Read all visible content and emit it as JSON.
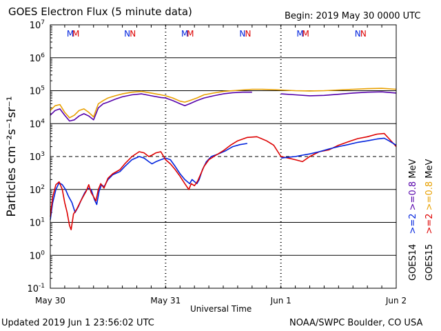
{
  "header": {
    "title": "GOES Electron Flux (5 minute data)",
    "begin": "Begin: 2019 May 30 0000 UTC"
  },
  "footer": {
    "updated": "Updated 2019 Jun  1 23:56:02 UTC",
    "source": "NOAA/SWPC Boulder, CO USA"
  },
  "colors": {
    "goes14_gt2": "#0022dd",
    "goes15_gt2": "#dd0000",
    "goes14_gt08": "#5500aa",
    "goes15_gt08": "#e8a000"
  },
  "chart_data": {
    "type": "line",
    "title": "GOES Electron Flux (5 minute data)",
    "xlabel": "Universal Time",
    "ylabel": "Particles cm⁻²s⁻¹sr⁻¹",
    "y_scale": "log",
    "ylim": [
      0.1,
      10000000
    ],
    "y_ticks": [
      {
        "exp": "-1",
        "value": 0.1
      },
      {
        "exp": "0",
        "value": 1
      },
      {
        "exp": "1",
        "value": 10
      },
      {
        "exp": "2",
        "value": 100
      },
      {
        "exp": "3",
        "value": 1000
      },
      {
        "exp": "4",
        "value": 10000
      },
      {
        "exp": "5",
        "value": 100000
      },
      {
        "exp": "6",
        "value": 1000000
      },
      {
        "exp": "7",
        "value": 10000000
      }
    ],
    "xlim": [
      "2019-05-30T00:00",
      "2019-06-02T00:00"
    ],
    "x_ticks": [
      "May 30",
      "May 31",
      "Jun 1",
      "Jun 2"
    ],
    "reference_line": {
      "value": 1000,
      "style": "dashed"
    },
    "markers": [
      {
        "label": "M",
        "x": "2019-05-30T04:10",
        "color": "#0022dd"
      },
      {
        "label": "M",
        "x": "2019-05-30T05:20",
        "color": "#dd0000"
      },
      {
        "label": "N",
        "x": "2019-05-30T16:00",
        "color": "#0022dd"
      },
      {
        "label": "N",
        "x": "2019-05-30T17:10",
        "color": "#dd0000"
      },
      {
        "label": "M",
        "x": "2019-05-31T04:00",
        "color": "#0022dd"
      },
      {
        "label": "M",
        "x": "2019-05-31T05:10",
        "color": "#dd0000"
      },
      {
        "label": "N",
        "x": "2019-05-31T16:00",
        "color": "#0022dd"
      },
      {
        "label": "N",
        "x": "2019-05-31T17:10",
        "color": "#dd0000"
      },
      {
        "label": "M",
        "x": "2019-06-01T04:00",
        "color": "#0022dd"
      },
      {
        "label": "M",
        "x": "2019-06-01T05:10",
        "color": "#dd0000"
      },
      {
        "label": "N",
        "x": "2019-06-01T16:00",
        "color": "#0022dd"
      },
      {
        "label": "N",
        "x": "2019-06-01T17:10",
        "color": "#dd0000"
      }
    ],
    "legend": {
      "group_labels": [
        {
          "text": "GOES14",
          "color": "#000000"
        },
        {
          "text": "GOES15",
          "color": "#000000"
        }
      ],
      "entries": [
        {
          "text": ">=2",
          "color": "#0022dd"
        },
        {
          "text": ">=2",
          "color": "#dd0000"
        },
        {
          "text": ">=0.8",
          "color": "#5500aa"
        },
        {
          "text": ">=0.8",
          "color": "#e8a000"
        },
        {
          "text": "MeV",
          "color": "#000000"
        },
        {
          "text": "MeV",
          "color": "#000000"
        }
      ]
    },
    "series": [
      {
        "color": "#0022dd",
        "points": [
          [
            "2019-05-30T00:00",
            12
          ],
          [
            "2019-05-30T00:30",
            40
          ],
          [
            "2019-05-30T01:10",
            100
          ],
          [
            "2019-05-30T01:50",
            160
          ],
          [
            "2019-05-30T02:30",
            140
          ],
          [
            "2019-05-30T03:10",
            100
          ],
          [
            "2019-05-30T03:50",
            60
          ],
          [
            "2019-05-30T04:30",
            40
          ],
          [
            "2019-05-30T05:10",
            20
          ],
          [
            "2019-05-30T05:50",
            30
          ],
          [
            "2019-05-30T06:30",
            50
          ],
          [
            "2019-05-30T07:10",
            80
          ],
          [
            "2019-05-30T07:50",
            110
          ],
          [
            "2019-05-30T08:30",
            100
          ],
          [
            "2019-05-30T09:10",
            50
          ],
          [
            "2019-05-30T09:40",
            35
          ],
          [
            "2019-05-30T10:10",
            90
          ],
          [
            "2019-05-30T10:40",
            140
          ],
          [
            "2019-05-30T11:10",
            120
          ],
          [
            "2019-05-30T12:00",
            200
          ],
          [
            "2019-05-30T13:00",
            280
          ],
          [
            "2019-05-30T14:30",
            350
          ],
          [
            "2019-05-30T15:30",
            500
          ],
          [
            "2019-05-30T17:00",
            800
          ],
          [
            "2019-05-30T18:30",
            1000
          ],
          [
            "2019-05-30T19:30",
            900
          ],
          [
            "2019-05-30T20:30",
            700
          ],
          [
            "2019-05-30T21:10",
            600
          ],
          [
            "2019-05-30T22:00",
            700
          ],
          [
            "2019-05-30T23:00",
            800
          ],
          [
            "2019-05-31T00:00",
            900
          ],
          [
            "2019-05-31T01:00",
            800
          ],
          [
            "2019-05-31T02:00",
            500
          ],
          [
            "2019-05-31T03:00",
            300
          ],
          [
            "2019-05-31T04:00",
            200
          ],
          [
            "2019-05-31T05:00",
            150
          ],
          [
            "2019-05-31T05:30",
            200
          ],
          [
            "2019-05-31T06:30",
            150
          ],
          [
            "2019-05-31T07:00",
            200
          ],
          [
            "2019-05-31T07:40",
            400
          ],
          [
            "2019-05-31T08:30",
            700
          ],
          [
            "2019-05-31T09:30",
            1000
          ],
          [
            "2019-05-31T11:00",
            1200
          ],
          [
            "2019-05-31T12:30",
            1500
          ],
          [
            "2019-05-31T14:00",
            2000
          ],
          [
            "2019-05-31T15:30",
            2300
          ],
          [
            "2019-05-31T17:00",
            2500
          ]
        ]
      },
      {
        "color": "#dd0000",
        "points": [
          [
            "2019-05-30T00:00",
            15
          ],
          [
            "2019-05-30T00:30",
            60
          ],
          [
            "2019-05-30T01:10",
            140
          ],
          [
            "2019-05-30T01:50",
            170
          ],
          [
            "2019-05-30T02:30",
            100
          ],
          [
            "2019-05-30T03:00",
            40
          ],
          [
            "2019-05-30T03:30",
            20
          ],
          [
            "2019-05-30T04:00",
            8
          ],
          [
            "2019-05-30T04:20",
            6
          ],
          [
            "2019-05-30T04:50",
            18
          ],
          [
            "2019-05-30T05:30",
            25
          ],
          [
            "2019-05-30T06:10",
            40
          ],
          [
            "2019-05-30T06:50",
            60
          ],
          [
            "2019-05-30T07:30",
            90
          ],
          [
            "2019-05-30T08:00",
            140
          ],
          [
            "2019-05-30T08:30",
            80
          ],
          [
            "2019-05-30T09:00",
            60
          ],
          [
            "2019-05-30T09:30",
            45
          ],
          [
            "2019-05-30T10:00",
            100
          ],
          [
            "2019-05-30T10:30",
            150
          ],
          [
            "2019-05-30T11:10",
            110
          ],
          [
            "2019-05-30T12:00",
            220
          ],
          [
            "2019-05-30T13:00",
            300
          ],
          [
            "2019-05-30T14:30",
            400
          ],
          [
            "2019-05-30T15:30",
            600
          ],
          [
            "2019-05-30T17:00",
            1000
          ],
          [
            "2019-05-30T18:30",
            1400
          ],
          [
            "2019-05-30T19:30",
            1300
          ],
          [
            "2019-05-30T20:30",
            1000
          ],
          [
            "2019-05-30T21:10",
            1100
          ],
          [
            "2019-05-30T22:00",
            1300
          ],
          [
            "2019-05-30T23:00",
            1400
          ],
          [
            "2019-05-31T00:00",
            800
          ],
          [
            "2019-05-31T01:00",
            600
          ],
          [
            "2019-05-31T02:00",
            400
          ],
          [
            "2019-05-31T03:00",
            250
          ],
          [
            "2019-05-31T04:00",
            150
          ],
          [
            "2019-05-31T04:50",
            100
          ],
          [
            "2019-05-31T05:20",
            150
          ],
          [
            "2019-05-31T06:00",
            130
          ],
          [
            "2019-05-31T06:40",
            180
          ],
          [
            "2019-05-31T07:20",
            300
          ],
          [
            "2019-05-31T08:00",
            500
          ],
          [
            "2019-05-31T09:00",
            800
          ],
          [
            "2019-05-31T10:30",
            1100
          ],
          [
            "2019-05-31T12:00",
            1500
          ],
          [
            "2019-05-31T13:30",
            2200
          ],
          [
            "2019-05-31T15:00",
            3000
          ],
          [
            "2019-05-31T17:00",
            3800
          ],
          [
            "2019-05-31T19:00",
            4000
          ],
          [
            "2019-05-31T21:00",
            3000
          ],
          [
            "2019-05-31T22:30",
            2200
          ],
          [
            "2019-06-01T00:00",
            1000
          ],
          [
            "2019-06-01T01:30",
            900
          ],
          [
            "2019-06-01T03:00",
            800
          ],
          [
            "2019-06-01T04:30",
            700
          ],
          [
            "2019-06-01T06:00",
            1000
          ],
          [
            "2019-06-01T08:00",
            1400
          ],
          [
            "2019-06-01T10:00",
            1600
          ],
          [
            "2019-06-01T12:00",
            2200
          ],
          [
            "2019-06-01T14:00",
            2800
          ],
          [
            "2019-06-01T16:00",
            3500
          ],
          [
            "2019-06-01T18:00",
            4000
          ],
          [
            "2019-06-01T20:00",
            4800
          ],
          [
            "2019-06-01T21:30",
            5000
          ],
          [
            "2019-06-01T22:30",
            3500
          ],
          [
            "2019-06-02T00:00",
            2000
          ]
        ]
      },
      {
        "color": "#0022dd",
        "points": [
          [
            "2019-06-01T00:00",
            900
          ],
          [
            "2019-06-01T01:30",
            950
          ],
          [
            "2019-06-01T03:00",
            1000
          ],
          [
            "2019-06-01T04:30",
            1100
          ],
          [
            "2019-06-01T06:00",
            1200
          ],
          [
            "2019-06-01T08:00",
            1400
          ],
          [
            "2019-06-01T10:00",
            1700
          ],
          [
            "2019-06-01T12:00",
            2000
          ],
          [
            "2019-06-01T14:00",
            2300
          ],
          [
            "2019-06-01T16:00",
            2700
          ],
          [
            "2019-06-01T18:00",
            3000
          ],
          [
            "2019-06-01T20:00",
            3400
          ],
          [
            "2019-06-01T21:30",
            3600
          ],
          [
            "2019-06-01T22:30",
            3000
          ],
          [
            "2019-06-02T00:00",
            2200
          ]
        ]
      },
      {
        "color": "#5500aa",
        "points": [
          [
            "2019-05-30T00:00",
            18000
          ],
          [
            "2019-05-30T01:00",
            25000
          ],
          [
            "2019-05-30T02:00",
            28000
          ],
          [
            "2019-05-30T03:00",
            18000
          ],
          [
            "2019-05-30T04:00",
            12000
          ],
          [
            "2019-05-30T05:00",
            13000
          ],
          [
            "2019-05-30T06:00",
            17000
          ],
          [
            "2019-05-30T07:00",
            20000
          ],
          [
            "2019-05-30T08:00",
            17000
          ],
          [
            "2019-05-30T09:00",
            13000
          ],
          [
            "2019-05-30T10:00",
            30000
          ],
          [
            "2019-05-30T11:00",
            40000
          ],
          [
            "2019-05-30T12:00",
            45000
          ],
          [
            "2019-05-30T13:30",
            55000
          ],
          [
            "2019-05-30T15:00",
            65000
          ],
          [
            "2019-05-30T17:00",
            75000
          ],
          [
            "2019-05-30T19:00",
            80000
          ],
          [
            "2019-05-30T21:00",
            70000
          ],
          [
            "2019-05-30T23:00",
            62000
          ],
          [
            "2019-05-31T00:00",
            60000
          ],
          [
            "2019-05-31T01:30",
            50000
          ],
          [
            "2019-05-31T03:00",
            40000
          ],
          [
            "2019-05-31T04:00",
            35000
          ],
          [
            "2019-05-31T05:00",
            40000
          ],
          [
            "2019-05-31T06:30",
            50000
          ],
          [
            "2019-05-31T08:00",
            60000
          ],
          [
            "2019-05-31T10:00",
            70000
          ],
          [
            "2019-05-31T12:00",
            80000
          ],
          [
            "2019-05-31T14:00",
            87000
          ],
          [
            "2019-05-31T16:00",
            90000
          ],
          [
            "2019-05-31T18:00",
            90000
          ]
        ]
      },
      {
        "color": "#e8a000",
        "points": [
          [
            "2019-05-30T00:00",
            25000
          ],
          [
            "2019-05-30T01:00",
            35000
          ],
          [
            "2019-05-30T02:00",
            38000
          ],
          [
            "2019-05-30T03:00",
            22000
          ],
          [
            "2019-05-30T04:00",
            15000
          ],
          [
            "2019-05-30T05:00",
            18000
          ],
          [
            "2019-05-30T06:00",
            25000
          ],
          [
            "2019-05-30T07:00",
            28000
          ],
          [
            "2019-05-30T08:00",
            22000
          ],
          [
            "2019-05-30T09:00",
            16000
          ],
          [
            "2019-05-30T10:00",
            40000
          ],
          [
            "2019-05-30T11:00",
            50000
          ],
          [
            "2019-05-30T12:00",
            60000
          ],
          [
            "2019-05-30T13:30",
            70000
          ],
          [
            "2019-05-30T15:00",
            80000
          ],
          [
            "2019-05-30T17:00",
            90000
          ],
          [
            "2019-05-30T19:00",
            95000
          ],
          [
            "2019-05-30T21:00",
            85000
          ],
          [
            "2019-05-30T23:00",
            75000
          ],
          [
            "2019-05-31T00:00",
            70000
          ],
          [
            "2019-05-31T01:30",
            60000
          ],
          [
            "2019-05-31T03:00",
            48000
          ],
          [
            "2019-05-31T04:00",
            45000
          ],
          [
            "2019-05-31T05:00",
            50000
          ],
          [
            "2019-05-31T06:30",
            60000
          ],
          [
            "2019-05-31T08:00",
            75000
          ],
          [
            "2019-05-31T10:00",
            85000
          ],
          [
            "2019-05-31T12:00",
            95000
          ],
          [
            "2019-05-31T14:00",
            100000
          ],
          [
            "2019-05-31T16:00",
            105000
          ],
          [
            "2019-05-31T18:00",
            110000
          ],
          [
            "2019-05-31T20:00",
            110000
          ],
          [
            "2019-05-31T22:00",
            108000
          ],
          [
            "2019-06-01T00:00",
            105000
          ],
          [
            "2019-06-01T03:00",
            100000
          ],
          [
            "2019-06-01T06:00",
            98000
          ],
          [
            "2019-06-01T09:00",
            100000
          ],
          [
            "2019-06-01T12:00",
            105000
          ],
          [
            "2019-06-01T15:00",
            110000
          ],
          [
            "2019-06-01T18:00",
            115000
          ],
          [
            "2019-06-01T21:00",
            118000
          ],
          [
            "2019-06-02T00:00",
            110000
          ]
        ]
      },
      {
        "color": "#5500aa",
        "points": [
          [
            "2019-06-01T00:00",
            80000
          ],
          [
            "2019-06-01T03:00",
            75000
          ],
          [
            "2019-06-01T06:00",
            70000
          ],
          [
            "2019-06-01T09:00",
            72000
          ],
          [
            "2019-06-01T12:00",
            78000
          ],
          [
            "2019-06-01T15:00",
            85000
          ],
          [
            "2019-06-01T18:00",
            90000
          ],
          [
            "2019-06-01T21:00",
            92000
          ],
          [
            "2019-06-02T00:00",
            85000
          ]
        ]
      }
    ]
  }
}
